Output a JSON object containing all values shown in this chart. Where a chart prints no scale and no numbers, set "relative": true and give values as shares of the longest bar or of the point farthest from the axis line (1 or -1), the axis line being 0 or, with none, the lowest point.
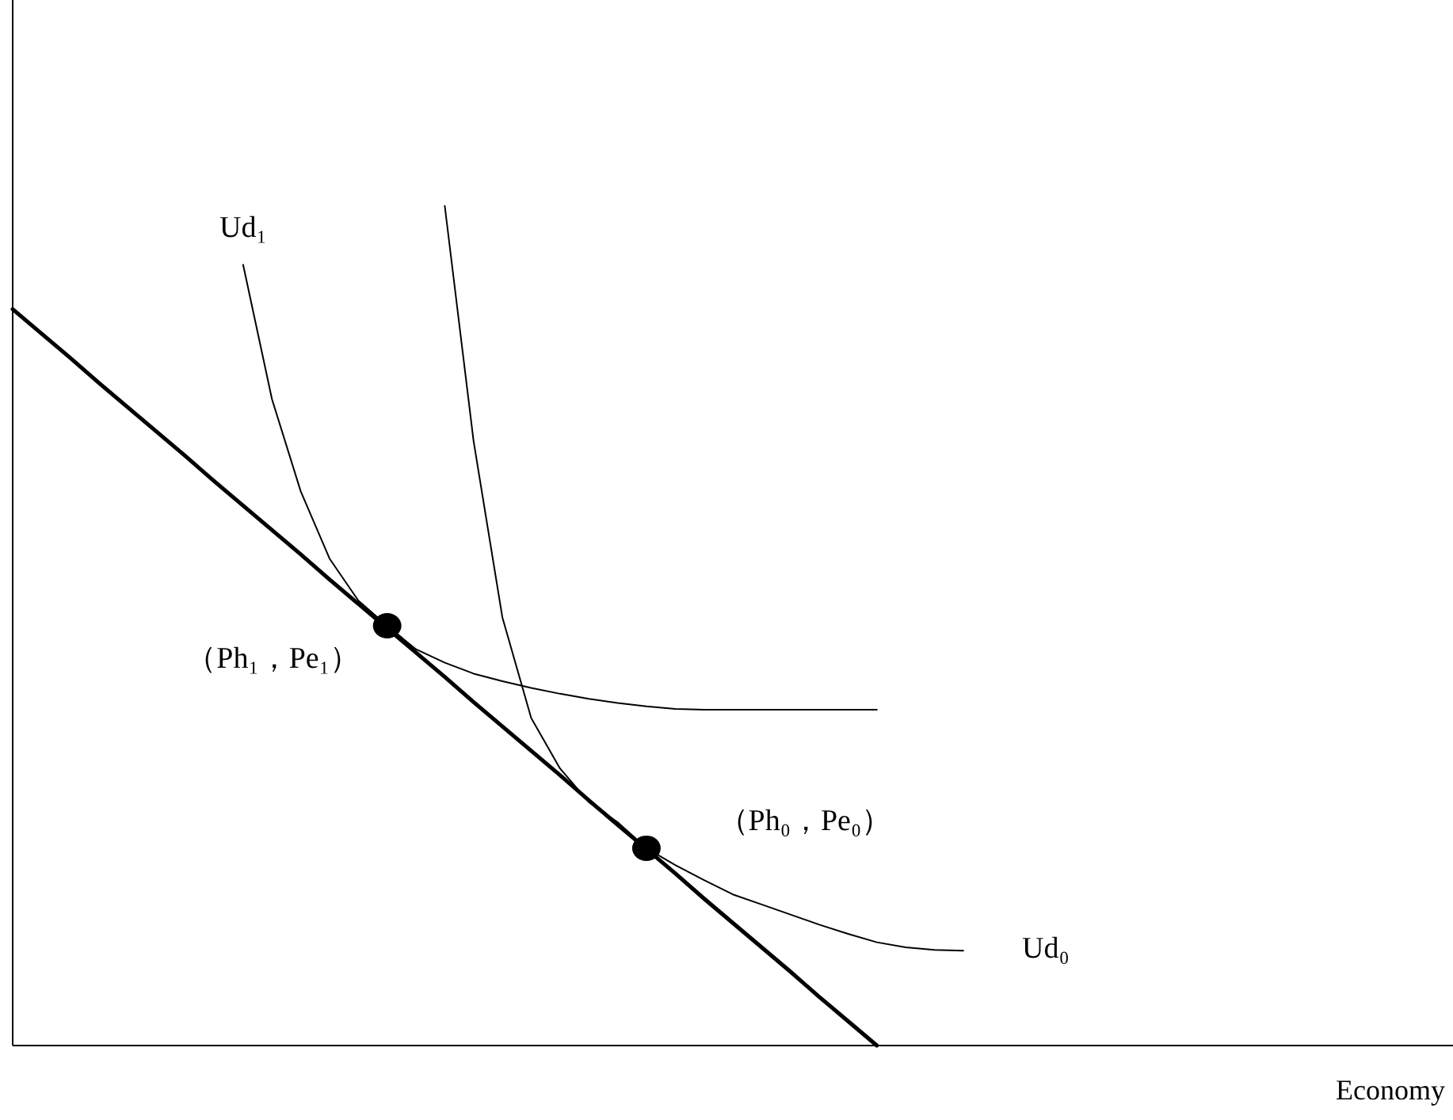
{
  "chart_data": {
    "type": "line",
    "relative": true,
    "xlabel": "Economy",
    "line_style": "solid",
    "categories": [
      null,
      null,
      null,
      null,
      null,
      null,
      null,
      null,
      null,
      null,
      null,
      null,
      null,
      null,
      null,
      null,
      null,
      null,
      null,
      null,
      null,
      null,
      null,
      null,
      null,
      null,
      null,
      null,
      null,
      null,
      null,
      null,
      null,
      null,
      null,
      null,
      null,
      null,
      null,
      null,
      null,
      null,
      null,
      null,
      null,
      null,
      null,
      null,
      null,
      null,
      null
    ],
    "series": [
      {
        "color": "#000000",
        "values": [
          0.877,
          0.848,
          0.819,
          0.789,
          0.76,
          0.731,
          0.702,
          0.672,
          0.643,
          0.614,
          0.585,
          0.555,
          0.526,
          0.497,
          0.468,
          0.439,
          0.409,
          0.38,
          0.351,
          0.322,
          0.292,
          0.263,
          0.234,
          0.205,
          0.175,
          0.146,
          0.117,
          0.088,
          0.058,
          0.029,
          0,
          null,
          null,
          null,
          null,
          null,
          null,
          null,
          null,
          null,
          null,
          null,
          null,
          null,
          null,
          null,
          null,
          null,
          null,
          null,
          null
        ]
      },
      {
        "color": "#000000",
        "values": [
          null,
          null,
          null,
          null,
          null,
          null,
          null,
          null,
          0.93,
          0.77,
          0.66,
          0.58,
          0.53,
          0.5,
          0.472,
          0.456,
          0.443,
          0.434,
          0.426,
          0.419,
          0.413,
          0.408,
          0.404,
          0.401,
          0.4,
          0.4,
          0.4,
          0.4,
          0.4,
          0.4,
          0.4,
          null,
          null,
          null,
          null,
          null,
          null,
          null,
          null,
          null,
          null,
          null,
          null,
          null,
          null,
          null,
          null,
          null,
          null,
          null,
          null
        ]
      },
      {
        "color": "#000000",
        "values": [
          null,
          null,
          null,
          null,
          null,
          null,
          null,
          null,
          null,
          null,
          null,
          null,
          null,
          null,
          null,
          1,
          0.72,
          0.51,
          0.39,
          0.33,
          0.29,
          0.266,
          0.235,
          0.215,
          0.197,
          0.18,
          0.168,
          0.156,
          0.144,
          0.133,
          0.123,
          0.117,
          0.114,
          0.113,
          null,
          null,
          null,
          null,
          null,
          null,
          null,
          null,
          null,
          null,
          null,
          null,
          null,
          null,
          null,
          null,
          null
        ]
      }
    ],
    "annotations": [
      "Ud₁",
      "（Ph₁，Pe₁）",
      "（Ph₀，Pe₀）",
      "Ud₀"
    ]
  }
}
